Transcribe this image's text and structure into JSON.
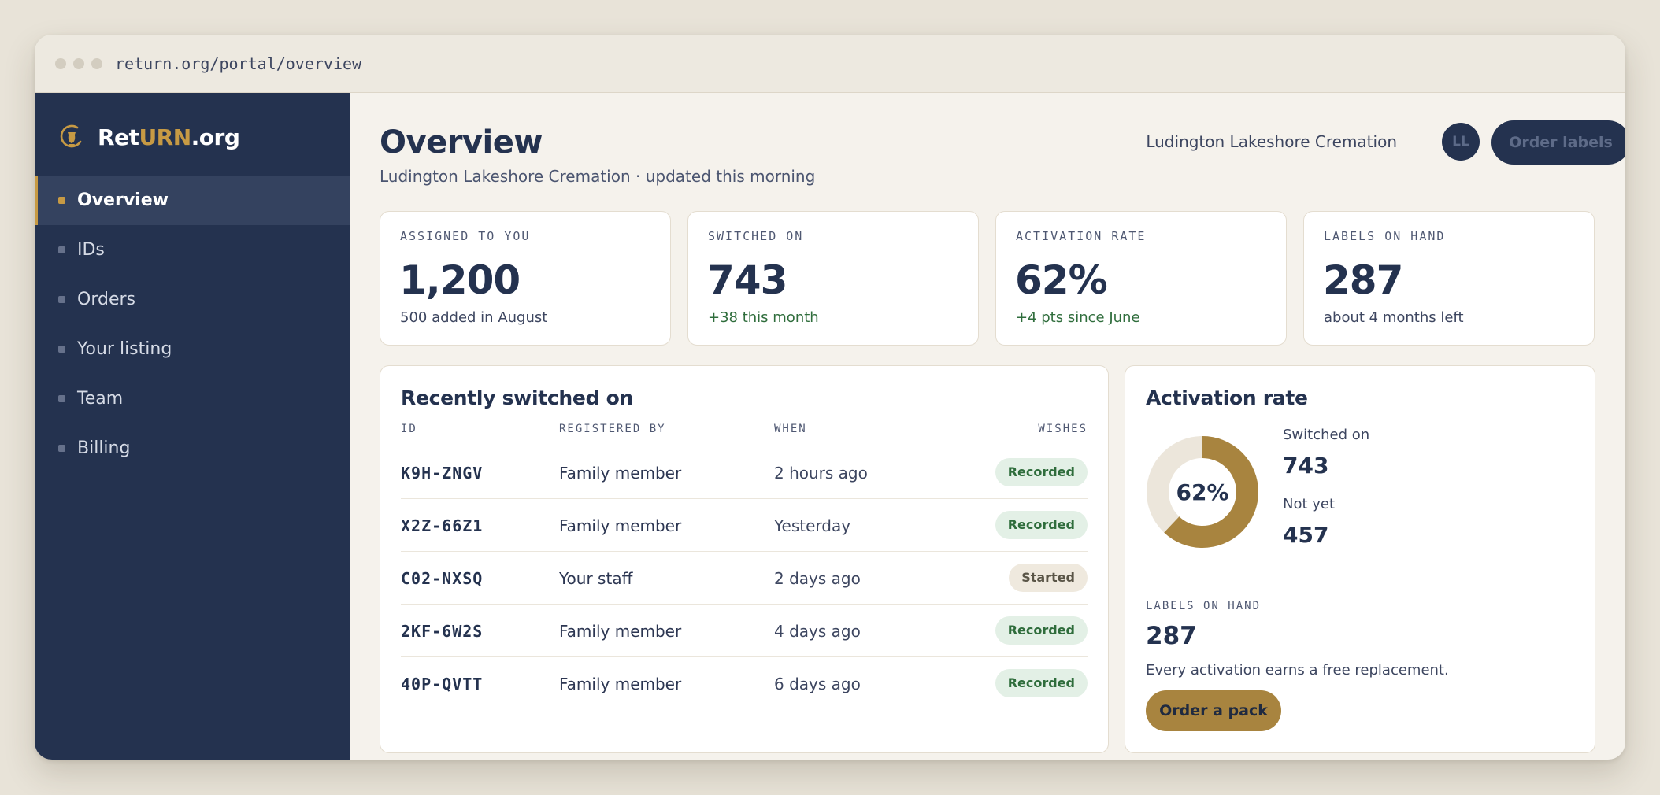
{
  "browser": {
    "url": "return.org/portal/overview"
  },
  "brand": {
    "name_part1": "Ret",
    "name_part2": "URN",
    "name_part3": ".org",
    "icon": "urn-icon"
  },
  "sidebar": {
    "items": [
      {
        "label": "Overview",
        "active": true
      },
      {
        "label": "IDs",
        "active": false
      },
      {
        "label": "Orders",
        "active": false
      },
      {
        "label": "Your listing",
        "active": false
      },
      {
        "label": "Team",
        "active": false
      },
      {
        "label": "Billing",
        "active": false
      }
    ]
  },
  "header": {
    "title": "Overview",
    "subtitle": "Ludington Lakeshore Cremation · updated this morning",
    "org_name": "Ludington Lakeshore Cremation",
    "avatar_initials": "LL",
    "order_labels": "Order labels"
  },
  "stats": [
    {
      "label": "ASSIGNED TO YOU",
      "value": "1,200",
      "note": "500 added in August"
    },
    {
      "label": "SWITCHED ON",
      "value": "743",
      "note": "+38 this month"
    },
    {
      "label": "ACTIVATION RATE",
      "value": "62%",
      "note": "+4 pts since June"
    },
    {
      "label": "LABELS ON HAND",
      "value": "287",
      "note": "about 4 months left"
    }
  ],
  "recent": {
    "title": "Recently switched on",
    "columns": [
      "ID",
      "REGISTERED BY",
      "WHEN",
      "WISHES"
    ],
    "rows": [
      {
        "id": "K9H-ZNGV",
        "registered_by": "Family member",
        "when": "2 hours ago",
        "wishes": "Recorded"
      },
      {
        "id": "X2Z-66Z1",
        "registered_by": "Family member",
        "when": "Yesterday",
        "wishes": "Recorded"
      },
      {
        "id": "C02-NXSQ",
        "registered_by": "Your staff",
        "when": "2 days ago",
        "wishes": "Started"
      },
      {
        "id": "2KF-6W2S",
        "registered_by": "Family member",
        "when": "4 days ago",
        "wishes": "Recorded"
      },
      {
        "id": "40P-QVTT",
        "registered_by": "Family member",
        "when": "6 days ago",
        "wishes": "Recorded"
      }
    ]
  },
  "activation": {
    "title": "Activation rate",
    "percent_label": "62%",
    "fraction": 0.62,
    "switched_on_label": "Switched on",
    "switched_on_value": "743",
    "not_yet_label": "Not yet",
    "not_yet_value": "457",
    "labels_title": "LABELS ON HAND",
    "labels_value": "287",
    "labels_note": "Every activation earns a free replacement.",
    "order_pack": "Order a pack"
  },
  "colors": {
    "navy": "#24324f",
    "gold": "#c79a44",
    "donut_fill": "#a8843f",
    "donut_track": "#ece6db",
    "positive": "#2f6d3c"
  }
}
